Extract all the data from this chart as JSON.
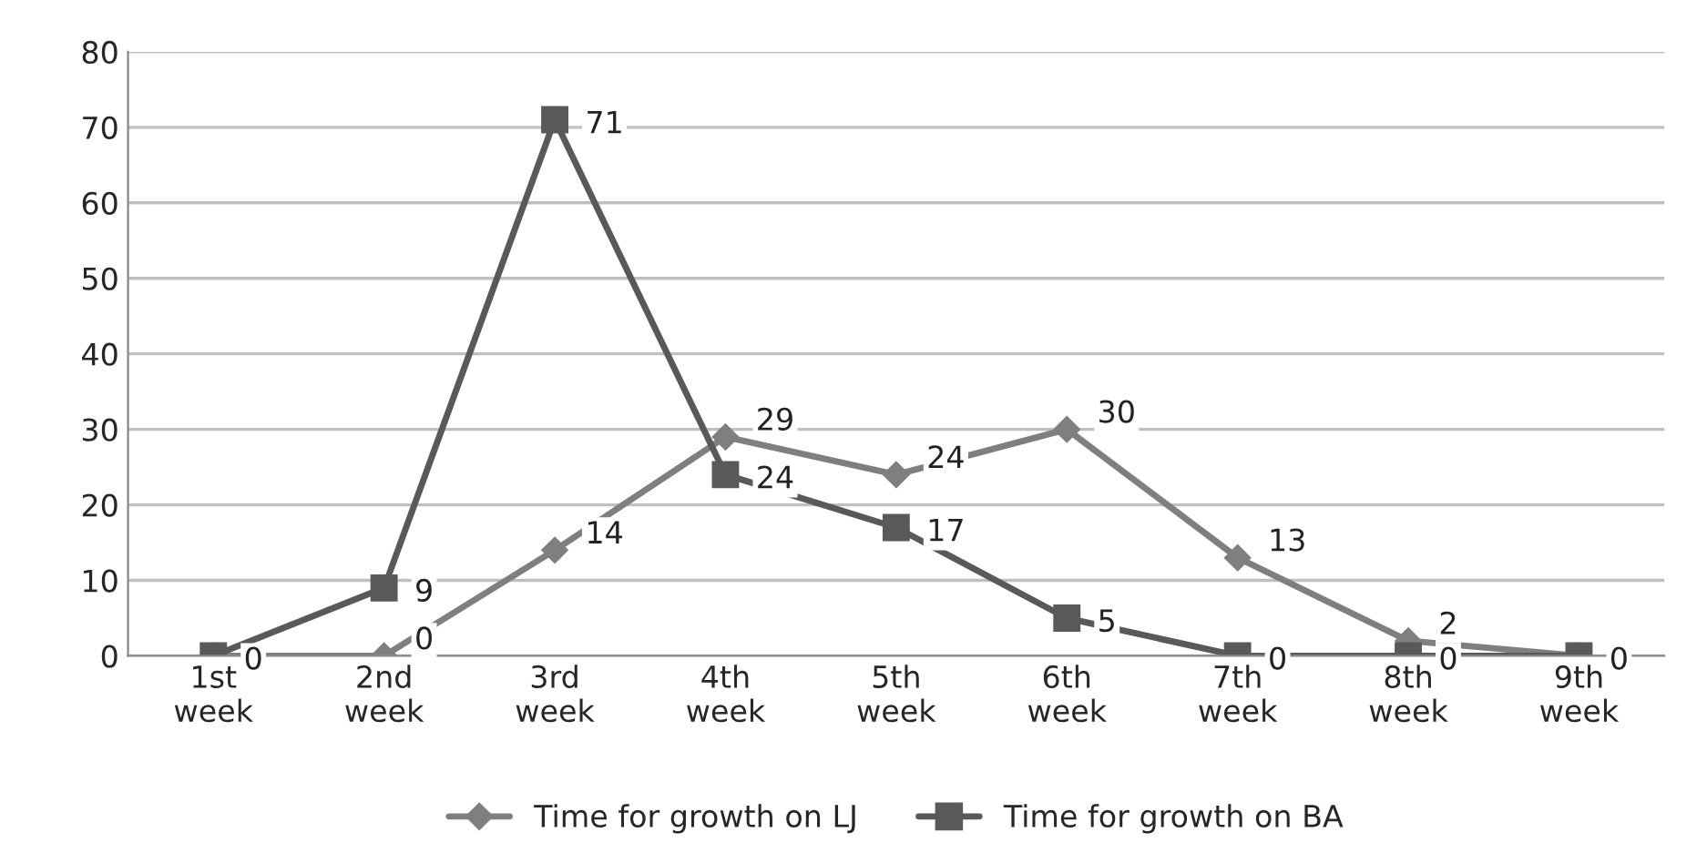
{
  "chart_data": {
    "type": "line",
    "categories": [
      "1st\nweek",
      "2nd\nweek",
      "3rd\nweek",
      "4th\nweek",
      "5th\nweek",
      "6th\nweek",
      "7th\nweek",
      "8th\nweek",
      "9th\nweek"
    ],
    "series": [
      {
        "name": "Time for growth on LJ",
        "color": "#7f7f7f",
        "marker": "diamond",
        "values": [
          0,
          0,
          14,
          29,
          24,
          30,
          13,
          2,
          0
        ],
        "value_labels": [
          null,
          "0",
          "14",
          "29",
          "24",
          "30",
          "13",
          "2",
          null
        ]
      },
      {
        "name": "Time for growth on BA",
        "color": "#595959",
        "marker": "square",
        "values": [
          0,
          9,
          71,
          24,
          17,
          5,
          0,
          0,
          0
        ],
        "value_labels": [
          "0",
          "9",
          "71",
          "24",
          "17",
          "5",
          "0",
          "0",
          "0"
        ]
      }
    ],
    "ylim": [
      0,
      80
    ],
    "yticks": [
      0,
      10,
      20,
      30,
      40,
      50,
      60,
      70,
      80
    ],
    "grid": "y",
    "legend": "bottom"
  }
}
